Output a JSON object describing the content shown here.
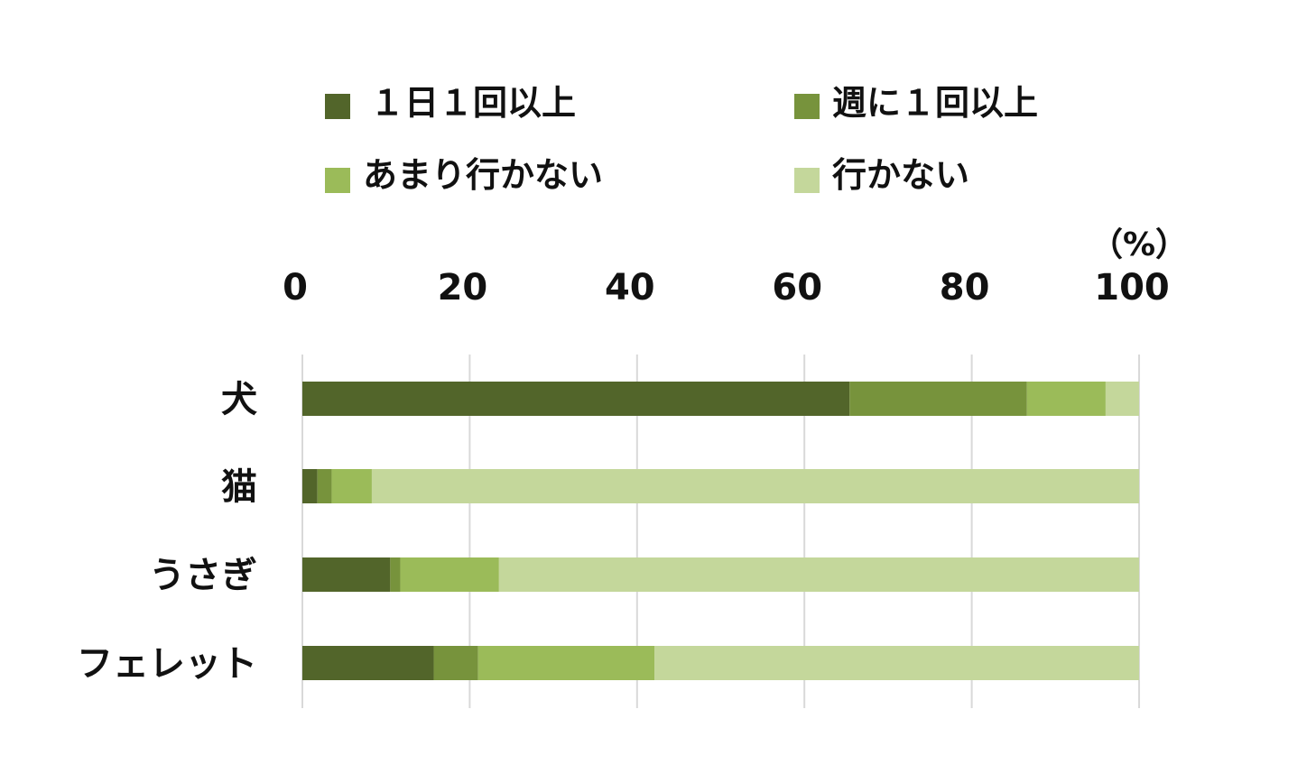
{
  "chart_data": {
    "type": "bar",
    "orientation": "horizontal",
    "stacked": true,
    "unit_label": "（%）",
    "xlim": [
      0,
      100
    ],
    "x_ticks": [
      "0",
      "20",
      "40",
      "60",
      "80",
      "100"
    ],
    "x_axis_position": "top",
    "grid": true,
    "legend_position": "top",
    "categories": [
      "犬",
      "猫",
      "うさぎ",
      "フェレット"
    ],
    "series": [
      {
        "name": "１日１回以上",
        "color": "#52652a",
        "values": [
          65.4,
          1.8,
          10.5,
          15.7
        ]
      },
      {
        "name": "週に１回以上",
        "color": "#77933c",
        "values": [
          21.2,
          1.7,
          1.2,
          5.3
        ]
      },
      {
        "name": "あまり行かない",
        "color": "#9bbb59",
        "values": [
          9.4,
          4.8,
          11.8,
          21.1
        ]
      },
      {
        "name": "行かない",
        "color": "#c4d79b",
        "values": [
          4.0,
          91.7,
          76.5,
          57.9
        ]
      }
    ]
  }
}
